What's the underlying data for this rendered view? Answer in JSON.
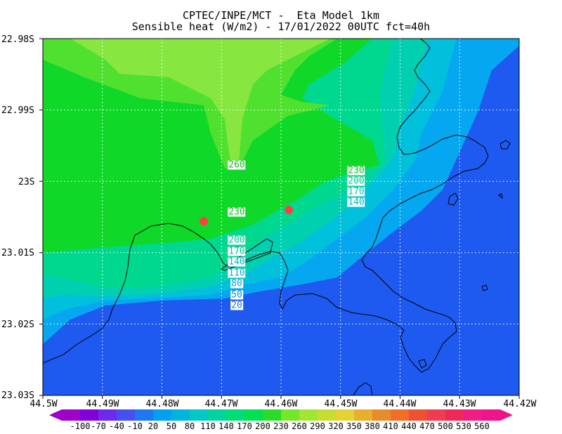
{
  "title": {
    "line1": "CPTEC/INPE/MCT -  Eta Model 1km",
    "line2": "Sensible heat (W/m2) - 17/01/2022 00UTC fct=40h"
  },
  "axes": {
    "y_labels": [
      "22.98S",
      "22.99S",
      "23S",
      "23.01S",
      "23.02S",
      "23.03S"
    ],
    "x_labels": [
      "44.5W",
      "44.49W",
      "44.48W",
      "44.47W",
      "44.46W",
      "44.45W",
      "44.44W",
      "44.43W",
      "44.42W"
    ]
  },
  "colorbar": {
    "labels": [
      "-100",
      "-70",
      "-40",
      "-10",
      "20",
      "50",
      "80",
      "110",
      "140",
      "170",
      "200",
      "230",
      "260",
      "290",
      "320",
      "350",
      "380",
      "410",
      "440",
      "470",
      "500",
      "530",
      "560"
    ],
    "colors": [
      "#a000c8",
      "#8200dc",
      "#6e28f0",
      "#4650f0",
      "#1e78f0",
      "#00a0f0",
      "#00b4dc",
      "#00c8c8",
      "#00d2a0",
      "#00dc78",
      "#00e050",
      "#28dc28",
      "#78e628",
      "#a0e632",
      "#c8dc32",
      "#e6d232",
      "#e6af2d",
      "#e68c28",
      "#f06e28",
      "#f05032",
      "#f03c50",
      "#f0285a",
      "#f01e82",
      "#f0148c"
    ]
  },
  "fill_colors": {
    "blue": "#1e5af0",
    "sky": "#05a8f0",
    "cyan": "#00c0dc",
    "teal": "#00d0b0",
    "mint": "#00d890",
    "green": "#10d828",
    "lgreen": "#50e030",
    "ygreen": "#88e640"
  },
  "contour_labels": [
    "260",
    "230",
    "230",
    "200",
    "170",
    "140",
    "200",
    "170",
    "140",
    "110",
    "80",
    "50",
    "20"
  ],
  "markers": [
    "station-1",
    "station-2"
  ],
  "marker_color": "#ff4040"
}
